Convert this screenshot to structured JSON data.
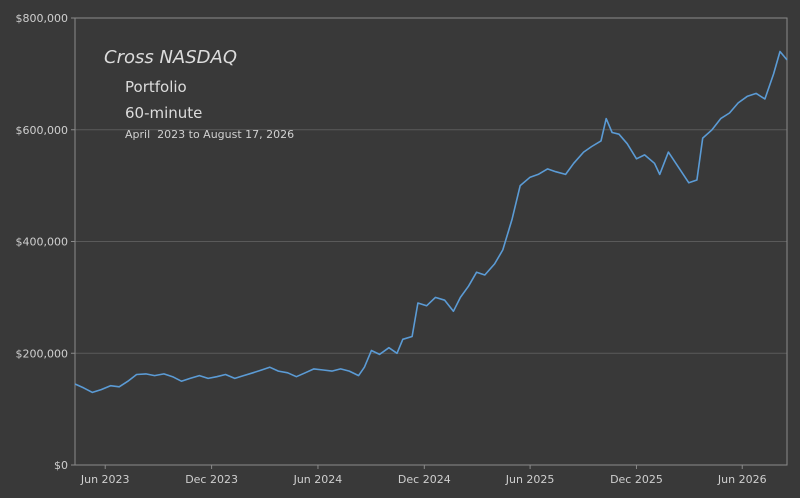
{
  "chart_data": {
    "type": "line",
    "title": "Cross NASDAQ",
    "subtitle": "Portfolio",
    "interval_label": "60-minute",
    "date_range_label": "April  2023 to August 17, 2026",
    "xlabel": "",
    "ylabel": "",
    "ylim": [
      0,
      800000
    ],
    "xlim": [
      "2023-04-10",
      "2026-08-17"
    ],
    "grid": true,
    "y_ticks": [
      {
        "value": 0,
        "label": "$0"
      },
      {
        "value": 200000,
        "label": "$200,000"
      },
      {
        "value": 400000,
        "label": "$400,000"
      },
      {
        "value": 600000,
        "label": "$600,000"
      },
      {
        "value": 800000,
        "label": "$800,000"
      }
    ],
    "x_ticks": [
      {
        "date": "2023-06-01",
        "label": "Jun 2023"
      },
      {
        "date": "2023-12-01",
        "label": "Dec 2023"
      },
      {
        "date": "2024-06-01",
        "label": "Jun 2024"
      },
      {
        "date": "2024-12-01",
        "label": "Dec 2024"
      },
      {
        "date": "2025-06-01",
        "label": "Jun 2025"
      },
      {
        "date": "2025-12-01",
        "label": "Dec 2025"
      },
      {
        "date": "2026-06-01",
        "label": "Jun 2026"
      }
    ],
    "series": [
      {
        "color": "#5b9bd5",
        "points": [
          [
            "2023-04-10",
            145000
          ],
          [
            "2023-04-25",
            138000
          ],
          [
            "2023-05-10",
            130000
          ],
          [
            "2023-05-25",
            135000
          ],
          [
            "2023-06-10",
            142000
          ],
          [
            "2023-06-25",
            140000
          ],
          [
            "2023-07-10",
            150000
          ],
          [
            "2023-07-25",
            162000
          ],
          [
            "2023-08-10",
            163000
          ],
          [
            "2023-08-25",
            160000
          ],
          [
            "2023-09-10",
            163000
          ],
          [
            "2023-09-25",
            158000
          ],
          [
            "2023-10-10",
            150000
          ],
          [
            "2023-10-25",
            155000
          ],
          [
            "2023-11-10",
            160000
          ],
          [
            "2023-11-25",
            155000
          ],
          [
            "2023-12-10",
            158000
          ],
          [
            "2023-12-25",
            162000
          ],
          [
            "2024-01-10",
            155000
          ],
          [
            "2024-01-25",
            160000
          ],
          [
            "2024-02-10",
            165000
          ],
          [
            "2024-02-25",
            170000
          ],
          [
            "2024-03-10",
            175000
          ],
          [
            "2024-03-25",
            168000
          ],
          [
            "2024-04-10",
            165000
          ],
          [
            "2024-04-25",
            158000
          ],
          [
            "2024-05-10",
            165000
          ],
          [
            "2024-05-25",
            172000
          ],
          [
            "2024-06-10",
            170000
          ],
          [
            "2024-06-25",
            168000
          ],
          [
            "2024-07-10",
            172000
          ],
          [
            "2024-07-25",
            168000
          ],
          [
            "2024-08-10",
            160000
          ],
          [
            "2024-08-20",
            175000
          ],
          [
            "2024-09-01",
            205000
          ],
          [
            "2024-09-15",
            198000
          ],
          [
            "2024-10-01",
            210000
          ],
          [
            "2024-10-15",
            200000
          ],
          [
            "2024-10-25",
            225000
          ],
          [
            "2024-11-10",
            230000
          ],
          [
            "2024-11-20",
            290000
          ],
          [
            "2024-12-05",
            285000
          ],
          [
            "2024-12-20",
            300000
          ],
          [
            "2025-01-05",
            295000
          ],
          [
            "2025-01-20",
            275000
          ],
          [
            "2025-02-01",
            300000
          ],
          [
            "2025-02-15",
            320000
          ],
          [
            "2025-03-01",
            345000
          ],
          [
            "2025-03-15",
            340000
          ],
          [
            "2025-04-01",
            360000
          ],
          [
            "2025-04-15",
            385000
          ],
          [
            "2025-05-01",
            440000
          ],
          [
            "2025-05-15",
            500000
          ],
          [
            "2025-06-01",
            515000
          ],
          [
            "2025-06-15",
            520000
          ],
          [
            "2025-07-01",
            530000
          ],
          [
            "2025-07-15",
            525000
          ],
          [
            "2025-08-01",
            520000
          ],
          [
            "2025-08-15",
            540000
          ],
          [
            "2025-09-01",
            560000
          ],
          [
            "2025-09-15",
            570000
          ],
          [
            "2025-10-01",
            580000
          ],
          [
            "2025-10-10",
            620000
          ],
          [
            "2025-10-20",
            595000
          ],
          [
            "2025-11-01",
            592000
          ],
          [
            "2025-11-15",
            575000
          ],
          [
            "2025-12-01",
            548000
          ],
          [
            "2025-12-15",
            555000
          ],
          [
            "2026-01-01",
            540000
          ],
          [
            "2026-01-10",
            520000
          ],
          [
            "2026-01-25",
            560000
          ],
          [
            "2026-02-10",
            535000
          ],
          [
            "2026-03-01",
            505000
          ],
          [
            "2026-03-15",
            510000
          ],
          [
            "2026-03-25",
            585000
          ],
          [
            "2026-04-10",
            600000
          ],
          [
            "2026-04-25",
            620000
          ],
          [
            "2026-05-10",
            630000
          ],
          [
            "2026-05-25",
            648000
          ],
          [
            "2026-06-10",
            660000
          ],
          [
            "2026-06-25",
            665000
          ],
          [
            "2026-07-10",
            655000
          ],
          [
            "2026-07-25",
            700000
          ],
          [
            "2026-08-05",
            740000
          ],
          [
            "2026-08-17",
            725000
          ]
        ]
      }
    ]
  },
  "colors": {
    "background": "#393939",
    "axis": "#8a8a8a",
    "grid": "#5a5a5a",
    "line": "#5b9bd5"
  }
}
